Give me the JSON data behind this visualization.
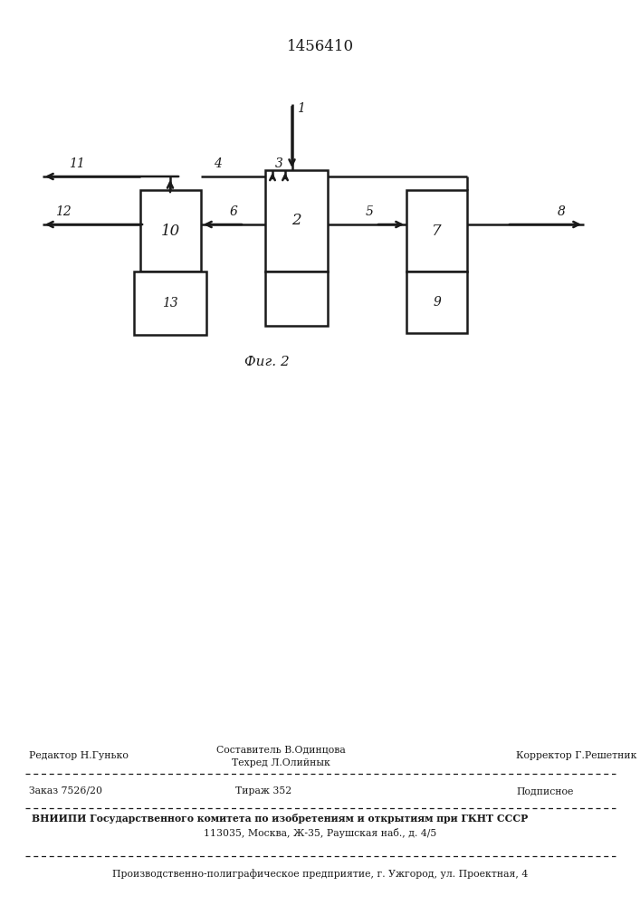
{
  "title": "1456410",
  "fig_label": "Фиг. 2",
  "bg_color": "#ffffff",
  "line_color": "#1a1a1a",
  "footer_line1_left": "Редактор Н.Гунько",
  "footer_line1_center_top": "Составитель В.Одинцова",
  "footer_line1_center_bot": "Техред Л.Олийнык",
  "footer_line1_right": "Корректор Г.Решетник",
  "footer_line2_left": "Заказ 7526/20",
  "footer_line2_center": "Тираж 352",
  "footer_line2_right": "Подписное",
  "footer_line3": "ВНИИПИ Государственного комитета по изобретениям и открытиям при ГКНТ СССР",
  "footer_line4": "113035, Москва, Ж-35, Раушская наб., д. 4/5",
  "footer_line5": "Производственно-полиграфическое предприятие, г. Ужгород, ул. Проектная, 4"
}
